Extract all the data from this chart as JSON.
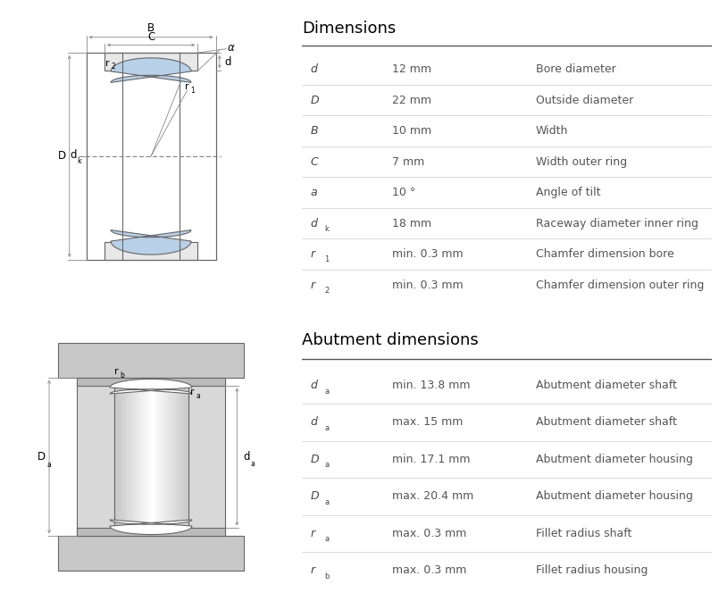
{
  "bg_color": "#ffffff",
  "line_color": "#666666",
  "blue_fill": "#b8d0e8",
  "gray_outer": "#d0d0d0",
  "gray_shaft": "#c8c8c8",
  "dim_color": "#888888",
  "dimensions_title": "Dimensions",
  "abutment_title": "Abutment dimensions",
  "dim_rows": [
    {
      "symbol": "d",
      "sub": "",
      "value": "12 mm",
      "desc": "Bore diameter"
    },
    {
      "symbol": "D",
      "sub": "",
      "value": "22 mm",
      "desc": "Outside diameter"
    },
    {
      "symbol": "B",
      "sub": "",
      "value": "10 mm",
      "desc": "Width"
    },
    {
      "symbol": "C",
      "sub": "",
      "value": "7 mm",
      "desc": "Width outer ring"
    },
    {
      "symbol": "a",
      "sub": "",
      "value": "10 °",
      "desc": "Angle of tilt"
    },
    {
      "symbol": "d",
      "sub": "k",
      "value": "18 mm",
      "desc": "Raceway diameter inner ring"
    },
    {
      "symbol": "r",
      "sub": "1",
      "value": "min. 0.3 mm",
      "desc": "Chamfer dimension bore"
    },
    {
      "symbol": "r",
      "sub": "2",
      "value": "min. 0.3 mm",
      "desc": "Chamfer dimension outer ring"
    }
  ],
  "abut_rows": [
    {
      "symbol": "d",
      "sub": "a",
      "value": "min. 13.8 mm",
      "desc": "Abutment diameter shaft"
    },
    {
      "symbol": "d",
      "sub": "a",
      "value": "max. 15 mm",
      "desc": "Abutment diameter shaft"
    },
    {
      "symbol": "D",
      "sub": "a",
      "value": "min. 17.1 mm",
      "desc": "Abutment diameter housing"
    },
    {
      "symbol": "D",
      "sub": "a",
      "value": "max. 20.4 mm",
      "desc": "Abutment diameter housing"
    },
    {
      "symbol": "r",
      "sub": "a",
      "value": "max. 0.3 mm",
      "desc": "Fillet radius shaft"
    },
    {
      "symbol": "r",
      "sub": "b",
      "value": "max. 0.3 mm",
      "desc": "Fillet radius housing"
    }
  ]
}
